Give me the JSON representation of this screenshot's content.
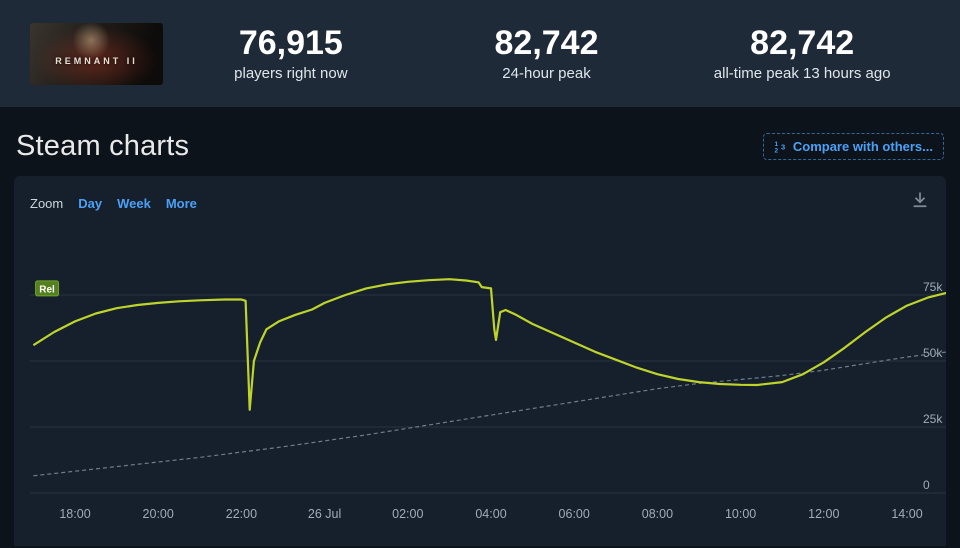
{
  "header": {
    "game_title": "REMNANT II",
    "stats": [
      {
        "value": "76,915",
        "label": "players right now"
      },
      {
        "value": "82,742",
        "label": "24-hour peak"
      },
      {
        "value": "82,742",
        "label": "all-time peak 13 hours ago"
      }
    ]
  },
  "section": {
    "title": "Steam charts",
    "compare_button": "Compare with others..."
  },
  "chart_controls": {
    "zoom_label": "Zoom",
    "options": [
      "Day",
      "Week",
      "More"
    ]
  },
  "colors": {
    "accent_blue": "#4ba0f4",
    "line_players": "#bfd42a",
    "line_trend": "#6f7d8a",
    "panel_bg": "#16202d",
    "topbar_bg": "#1e2a38",
    "page_bg": "#0d131b",
    "flag_green": "#54801f"
  },
  "chart_data": {
    "type": "line",
    "title": "",
    "legend": "none",
    "grid": "horizontal",
    "values_unit": "concurrent players (thousands)",
    "x_unit": "hours since 17:00 on 25 Jul (hour 7 = 00:00 on 26 Jul)",
    "xlim_hours": [
      0,
      22
    ],
    "ylim": [
      0,
      101
    ],
    "yticks": [
      {
        "value": 0,
        "label": "0"
      },
      {
        "value": 25,
        "label": "25k"
      },
      {
        "value": 50,
        "label": "50k"
      },
      {
        "value": 75,
        "label": "75k"
      }
    ],
    "xticks": [
      {
        "hour": 1,
        "label": "18:00"
      },
      {
        "hour": 3,
        "label": "20:00"
      },
      {
        "hour": 5,
        "label": "22:00"
      },
      {
        "hour": 7,
        "label": "26 Jul"
      },
      {
        "hour": 9,
        "label": "02:00"
      },
      {
        "hour": 11,
        "label": "04:00"
      },
      {
        "hour": 13,
        "label": "06:00"
      },
      {
        "hour": 15,
        "label": "08:00"
      },
      {
        "hour": 17,
        "label": "10:00"
      },
      {
        "hour": 19,
        "label": "12:00"
      },
      {
        "hour": 21,
        "label": "14:00"
      }
    ],
    "series": [
      {
        "name": "concurrent-players",
        "color": "#bfd42a",
        "dashed": false,
        "points": [
          [
            0,
            56
          ],
          [
            0.5,
            61
          ],
          [
            1,
            65
          ],
          [
            1.5,
            68
          ],
          [
            2,
            70
          ],
          [
            2.5,
            71.2
          ],
          [
            3,
            72
          ],
          [
            3.5,
            72.6
          ],
          [
            4,
            73
          ],
          [
            4.6,
            73.3
          ],
          [
            5,
            73.3
          ],
          [
            5.1,
            72.8
          ],
          [
            5.2,
            31.5
          ],
          [
            5.3,
            50
          ],
          [
            5.45,
            57
          ],
          [
            5.6,
            62
          ],
          [
            5.9,
            65
          ],
          [
            6.3,
            67.5
          ],
          [
            6.7,
            69.5
          ],
          [
            7,
            72
          ],
          [
            7.5,
            75
          ],
          [
            8,
            77.5
          ],
          [
            8.5,
            79
          ],
          [
            9,
            80
          ],
          [
            9.5,
            80.6
          ],
          [
            10,
            81
          ],
          [
            10.4,
            80.5
          ],
          [
            10.7,
            79.8
          ],
          [
            10.78,
            78
          ],
          [
            10.95,
            77.6
          ],
          [
            11,
            77.5
          ],
          [
            11.08,
            62
          ],
          [
            11.12,
            58
          ],
          [
            11.22,
            68.5
          ],
          [
            11.35,
            69.3
          ],
          [
            11.6,
            67.5
          ],
          [
            12,
            64
          ],
          [
            12.5,
            60.5
          ],
          [
            13,
            57
          ],
          [
            13.5,
            53.5
          ],
          [
            14,
            50.5
          ],
          [
            14.5,
            47.5
          ],
          [
            15,
            45
          ],
          [
            15.5,
            43.2
          ],
          [
            16,
            42
          ],
          [
            16.5,
            41.3
          ],
          [
            17,
            41
          ],
          [
            17.4,
            40.9
          ],
          [
            18,
            42
          ],
          [
            18.5,
            45
          ],
          [
            19,
            49.5
          ],
          [
            19.5,
            55
          ],
          [
            20,
            61
          ],
          [
            20.5,
            66.5
          ],
          [
            21,
            71
          ],
          [
            21.5,
            74
          ],
          [
            22,
            76
          ]
        ]
      },
      {
        "name": "trend-dashed",
        "color": "#6f7d8a",
        "dashed": true,
        "points": [
          [
            0,
            6.5
          ],
          [
            2,
            10
          ],
          [
            4,
            13.5
          ],
          [
            6,
            17.5
          ],
          [
            8,
            22
          ],
          [
            10,
            27
          ],
          [
            12,
            32
          ],
          [
            14,
            37
          ],
          [
            15,
            39.5
          ],
          [
            16,
            41.5
          ],
          [
            17,
            43
          ],
          [
            18,
            44.5
          ],
          [
            19,
            46.5
          ],
          [
            20,
            49
          ],
          [
            21,
            51.5
          ],
          [
            22,
            53.5
          ]
        ]
      }
    ],
    "flags": [
      {
        "label": "Rel",
        "hour": 0.1,
        "value": 77.3
      }
    ]
  }
}
